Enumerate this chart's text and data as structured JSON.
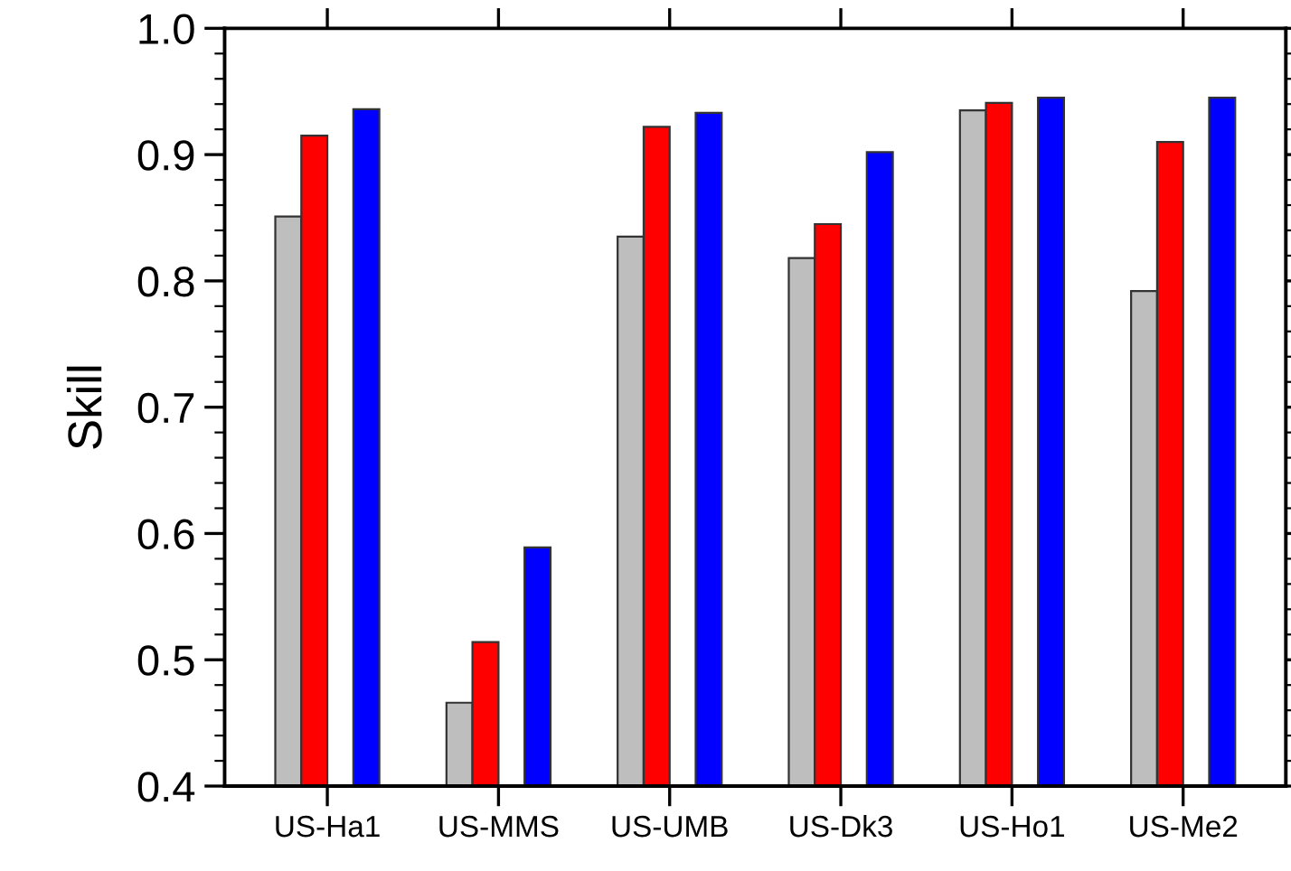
{
  "chart_data": {
    "type": "bar",
    "ylabel": "Skill",
    "categories": [
      "US-Ha1",
      "US-MMS",
      "US-UMB",
      "US-Dk3",
      "US-Ho1",
      "US-Me2"
    ],
    "series": [
      {
        "color": "#bebebe",
        "values": [
          0.851,
          0.466,
          0.835,
          0.818,
          0.935,
          0.792
        ]
      },
      {
        "color": "#ff0000",
        "values": [
          0.915,
          0.514,
          0.922,
          0.845,
          0.941,
          0.91
        ]
      },
      {
        "color": "#0000ff",
        "values": [
          0.936,
          0.589,
          0.933,
          0.902,
          0.945,
          0.945
        ]
      }
    ],
    "ylim": [
      0.4,
      1.0
    ],
    "yticks": [
      {
        "value": 0.4,
        "label": "0.4"
      },
      {
        "value": 0.5,
        "label": "0.5"
      },
      {
        "value": 0.6,
        "label": "0.6"
      },
      {
        "value": 0.7,
        "label": "0.7"
      },
      {
        "value": 0.8,
        "label": "0.8"
      },
      {
        "value": 0.9,
        "label": "0.9"
      },
      {
        "value": 1.0,
        "label": "1.0"
      }
    ]
  }
}
